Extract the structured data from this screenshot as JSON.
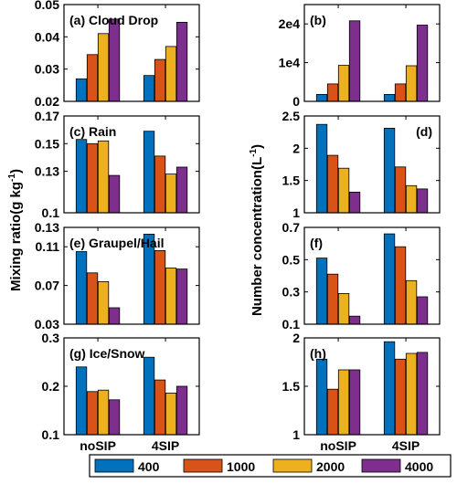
{
  "figure": {
    "left_ylabel": "Mixing ratio(g kg",
    "left_ylabel_sup": "-1",
    "left_ylabel_end": ")",
    "right_ylabel": "Number concentration(L",
    "right_ylabel_sup": "-1",
    "right_ylabel_end": ")"
  },
  "colors": {
    "s400": "#0072BD",
    "s1000": "#D95319",
    "s2000": "#EDB120",
    "s4000": "#7E2F8E"
  },
  "legend": {
    "position": "bottom",
    "entries": [
      "400",
      "1000",
      "2000",
      "4000"
    ]
  },
  "chart_data": [
    {
      "id": "a",
      "type": "bar",
      "title": "(a) Cloud Drop",
      "title_position": "top-left",
      "categories": [
        "noSIP",
        "4SIP"
      ],
      "show_xticks": false,
      "ylim": [
        0.02,
        0.05
      ],
      "yticks": [
        {
          "v": 0.02,
          "label": "0.02"
        },
        {
          "v": 0.03,
          "label": "0.03"
        },
        {
          "v": 0.04,
          "label": "0.04"
        },
        {
          "v": 0.05,
          "label": "0.05"
        }
      ],
      "series": [
        {
          "name": "400",
          "values": [
            0.027,
            0.028
          ]
        },
        {
          "name": "1000",
          "values": [
            0.0345,
            0.033
          ]
        },
        {
          "name": "2000",
          "values": [
            0.041,
            0.037
          ]
        },
        {
          "name": "4000",
          "values": [
            0.0455,
            0.0445
          ]
        }
      ]
    },
    {
      "id": "b",
      "type": "bar",
      "title": "(b)",
      "title_position": "top-left",
      "categories": [
        "noSIP",
        "4SIP"
      ],
      "show_xticks": false,
      "ylim": [
        0,
        25000
      ],
      "yticks": [
        {
          "v": 0,
          "label": "0"
        },
        {
          "v": 10000,
          "label": "1e4"
        },
        {
          "v": 20000,
          "label": "2e4"
        }
      ],
      "series": [
        {
          "name": "400",
          "values": [
            1800,
            1800
          ]
        },
        {
          "name": "1000",
          "values": [
            4500,
            4500
          ]
        },
        {
          "name": "2000",
          "values": [
            9300,
            9200
          ]
        },
        {
          "name": "4000",
          "values": [
            20800,
            19700
          ]
        }
      ]
    },
    {
      "id": "c",
      "type": "bar",
      "title": "(c) Rain",
      "title_position": "top-left",
      "categories": [
        "noSIP",
        "4SIP"
      ],
      "show_xticks": false,
      "ylim": [
        0.1,
        0.17
      ],
      "yticks": [
        {
          "v": 0.1,
          "label": "0.1"
        },
        {
          "v": 0.13,
          "label": "0.13"
        },
        {
          "v": 0.15,
          "label": "0.15"
        },
        {
          "v": 0.17,
          "label": "0.17"
        }
      ],
      "series": [
        {
          "name": "400",
          "values": [
            0.153,
            0.159
          ]
        },
        {
          "name": "1000",
          "values": [
            0.15,
            0.141
          ]
        },
        {
          "name": "2000",
          "values": [
            0.152,
            0.128
          ]
        },
        {
          "name": "4000",
          "values": [
            0.127,
            0.133
          ]
        }
      ]
    },
    {
      "id": "d",
      "type": "bar",
      "title": "(d)",
      "title_position": "top-right",
      "categories": [
        "noSIP",
        "4SIP"
      ],
      "show_xticks": false,
      "ylim": [
        1,
        2.5
      ],
      "yticks": [
        {
          "v": 1,
          "label": "1"
        },
        {
          "v": 1.5,
          "label": "1.5"
        },
        {
          "v": 2,
          "label": "2"
        },
        {
          "v": 2.5,
          "label": "2.5"
        }
      ],
      "series": [
        {
          "name": "400",
          "values": [
            2.37,
            2.31
          ]
        },
        {
          "name": "1000",
          "values": [
            1.89,
            1.71
          ]
        },
        {
          "name": "2000",
          "values": [
            1.69,
            1.42
          ]
        },
        {
          "name": "4000",
          "values": [
            1.32,
            1.37
          ]
        }
      ]
    },
    {
      "id": "e",
      "type": "bar",
      "title": "(e) Graupel/Hail",
      "title_position": "top-left",
      "categories": [
        "noSIP",
        "4SIP"
      ],
      "show_xticks": false,
      "ylim": [
        0.03,
        0.13
      ],
      "yticks": [
        {
          "v": 0.03,
          "label": "0.03"
        },
        {
          "v": 0.07,
          "label": "0.07"
        },
        {
          "v": 0.11,
          "label": "0.11"
        },
        {
          "v": 0.13,
          "label": "0.13"
        }
      ],
      "series": [
        {
          "name": "400",
          "values": [
            0.105,
            0.123
          ]
        },
        {
          "name": "1000",
          "values": [
            0.083,
            0.106
          ]
        },
        {
          "name": "2000",
          "values": [
            0.074,
            0.088
          ]
        },
        {
          "name": "4000",
          "values": [
            0.047,
            0.087
          ]
        }
      ]
    },
    {
      "id": "f",
      "type": "bar",
      "title": "(f)",
      "title_position": "top-left",
      "categories": [
        "noSIP",
        "4SIP"
      ],
      "show_xticks": false,
      "ylim": [
        0.1,
        0.7
      ],
      "yticks": [
        {
          "v": 0.1,
          "label": "0.1"
        },
        {
          "v": 0.3,
          "label": "0.3"
        },
        {
          "v": 0.5,
          "label": "0.5"
        },
        {
          "v": 0.7,
          "label": "0.7"
        }
      ],
      "series": [
        {
          "name": "400",
          "values": [
            0.51,
            0.66
          ]
        },
        {
          "name": "1000",
          "values": [
            0.41,
            0.58
          ]
        },
        {
          "name": "2000",
          "values": [
            0.29,
            0.37
          ]
        },
        {
          "name": "4000",
          "values": [
            0.15,
            0.27
          ]
        }
      ]
    },
    {
      "id": "g",
      "type": "bar",
      "title": "(g) Ice/Snow",
      "title_position": "top-left",
      "categories": [
        "noSIP",
        "4SIP"
      ],
      "show_xticks": true,
      "ylim": [
        0.1,
        0.3
      ],
      "yticks": [
        {
          "v": 0.1,
          "label": "0.1"
        },
        {
          "v": 0.2,
          "label": "0.2"
        },
        {
          "v": 0.3,
          "label": "0.3"
        }
      ],
      "series": [
        {
          "name": "400",
          "values": [
            0.24,
            0.26
          ]
        },
        {
          "name": "1000",
          "values": [
            0.189,
            0.213
          ]
        },
        {
          "name": "2000",
          "values": [
            0.192,
            0.186
          ]
        },
        {
          "name": "4000",
          "values": [
            0.172,
            0.2
          ]
        }
      ]
    },
    {
      "id": "h",
      "type": "bar",
      "title": "(h)",
      "title_position": "top-left",
      "categories": [
        "noSIP",
        "4SIP"
      ],
      "show_xticks": true,
      "ylim": [
        1,
        2
      ],
      "yticks": [
        {
          "v": 1,
          "label": "1"
        },
        {
          "v": 1.5,
          "label": "1.5"
        },
        {
          "v": 2,
          "label": "2"
        }
      ],
      "series": [
        {
          "name": "400",
          "values": [
            1.78,
            1.96
          ]
        },
        {
          "name": "1000",
          "values": [
            1.47,
            1.78
          ]
        },
        {
          "name": "2000",
          "values": [
            1.67,
            1.84
          ]
        },
        {
          "name": "4000",
          "values": [
            1.67,
            1.85
          ]
        }
      ]
    }
  ]
}
